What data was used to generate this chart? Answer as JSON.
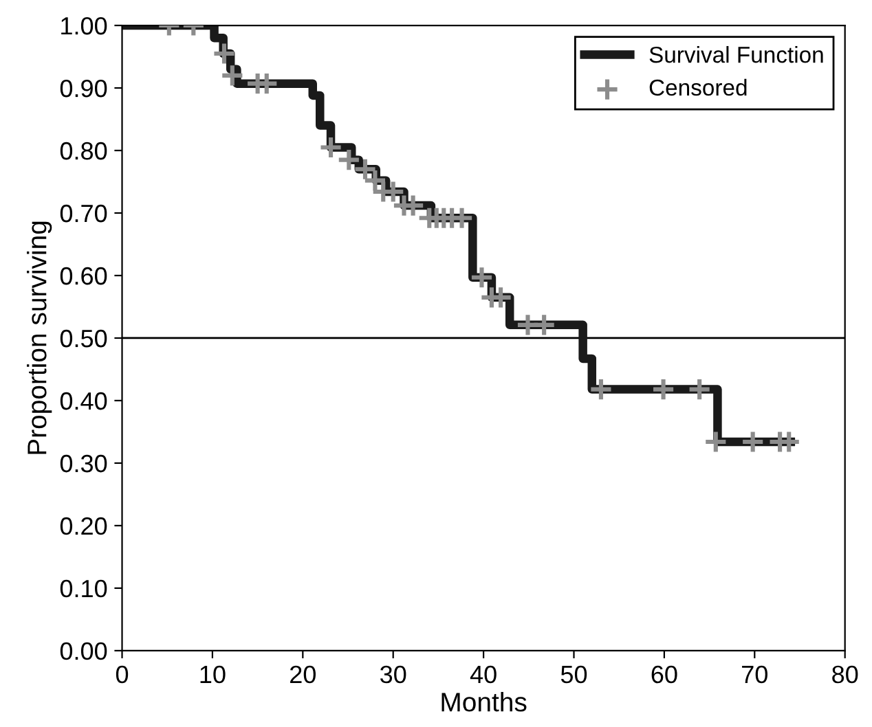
{
  "chart_data": {
    "type": "step",
    "xlabel": "Months",
    "ylabel": "Proportion surviving",
    "xlim": [
      0,
      80
    ],
    "xticks": [
      0,
      10,
      20,
      30,
      40,
      50,
      60,
      70,
      80
    ],
    "ylim": [
      0,
      1
    ],
    "yticks": [
      {
        "value": 0,
        "label": "0.00"
      },
      {
        "value": 0.1,
        "label": "0.10"
      },
      {
        "value": 0.2,
        "label": "0.20"
      },
      {
        "value": 0.3,
        "label": "0.30"
      },
      {
        "value": 0.4,
        "label": "0.40"
      },
      {
        "value": 0.5,
        "label": "0.50"
      },
      {
        "value": 0.6,
        "label": "0.60"
      },
      {
        "value": 0.7,
        "label": "0.70"
      },
      {
        "value": 0.8,
        "label": "0.80"
      },
      {
        "value": 0.9,
        "label": "0.90"
      },
      {
        "value": 1,
        "label": "1.00"
      }
    ],
    "grid": false,
    "legend": "top right",
    "ref_lines": [
      {
        "axis": "y",
        "value": 0.5,
        "color": "#000000"
      }
    ],
    "series": [
      {
        "name": "Survival Function",
        "color": "#1a1a1a",
        "marker": "none",
        "x": [
          0,
          10.2,
          11.2,
          12.0,
          12.7,
          21.1,
          21.9,
          23.1,
          25.4,
          26.2,
          28.1,
          29.2,
          31.2,
          34.2,
          38.8,
          40.9,
          42.9,
          51.0,
          52.0,
          65.9,
          74
        ],
        "values": [
          1.0,
          0.98,
          0.955,
          0.93,
          0.907,
          0.888,
          0.84,
          0.805,
          0.785,
          0.77,
          0.752,
          0.734,
          0.712,
          0.692,
          0.597,
          0.565,
          0.521,
          0.467,
          0.418,
          0.334,
          0.334
        ]
      },
      {
        "name": "Censored",
        "type": "scatter",
        "color": "#8c8c8c",
        "marker": "cross",
        "x": [
          5.2,
          7.9,
          11.3,
          12.2,
          15.0,
          16.0,
          23.1,
          25.1,
          26.9,
          28.0,
          28.9,
          30.0,
          31.2,
          32.2,
          34.0,
          34.8,
          35.6,
          36.5,
          37.6,
          39.8,
          40.9,
          41.9,
          44.9,
          46.7,
          53.0,
          59.9,
          63.9,
          65.7,
          69.8,
          72.8,
          73.8
        ],
        "values": [
          1.0,
          1.0,
          0.955,
          0.92,
          0.907,
          0.907,
          0.805,
          0.785,
          0.77,
          0.752,
          0.734,
          0.734,
          0.712,
          0.712,
          0.692,
          0.692,
          0.692,
          0.692,
          0.692,
          0.597,
          0.565,
          0.565,
          0.521,
          0.521,
          0.418,
          0.418,
          0.418,
          0.334,
          0.334,
          0.334,
          0.334
        ]
      }
    ]
  }
}
